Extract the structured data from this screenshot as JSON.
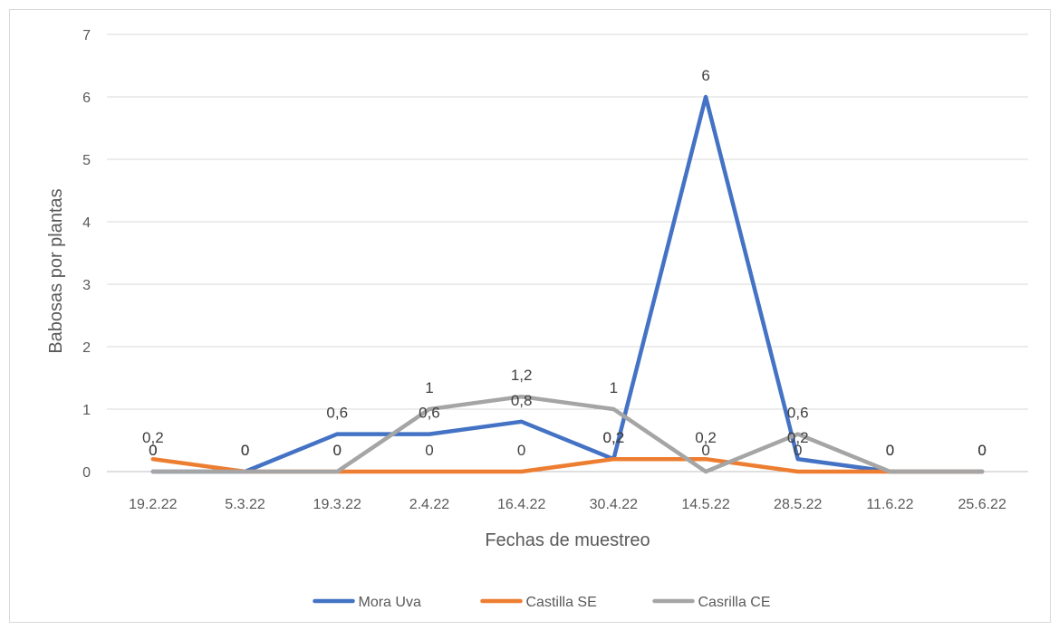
{
  "chart_data": {
    "type": "line",
    "title": "",
    "xlabel": "Fechas de muestreo",
    "ylabel": "Babosas por plantas",
    "categories": [
      "19.2.22",
      "5.3.22",
      "19.3.22",
      "2.4.22",
      "16.4.22",
      "30.4.22",
      "14.5.22",
      "28.5.22",
      "11.6.22",
      "25.6.22"
    ],
    "ylim": [
      0,
      7
    ],
    "yticks": [
      0,
      1,
      2,
      3,
      4,
      5,
      6,
      7
    ],
    "grid": true,
    "legend_position": "bottom",
    "series": [
      {
        "name": "Mora Uva",
        "color": "#4472C4",
        "values": [
          0,
          0,
          0.6,
          0.6,
          0.8,
          0.2,
          6,
          0.2,
          0,
          0
        ],
        "labels": [
          "0",
          "0",
          "0,6",
          "0,6",
          "0,8",
          "0,2",
          "6",
          "0,2",
          "0",
          "0"
        ]
      },
      {
        "name": "Castilla SE",
        "color": "#ED7D31",
        "values": [
          0.2,
          0,
          0,
          0,
          0,
          0.2,
          0.2,
          0,
          0,
          0
        ],
        "labels": [
          "0,2",
          "0",
          "0",
          "0",
          "0",
          "0,2",
          "0,2",
          "0",
          "0",
          "0"
        ]
      },
      {
        "name": "Casrilla CE",
        "color": "#A5A5A5",
        "values": [
          0,
          0,
          0,
          1,
          1.2,
          1,
          0,
          0.6,
          0,
          0
        ],
        "labels": [
          "0",
          "0",
          "0",
          "1",
          "1,2",
          "1",
          "0",
          "0,6",
          "0",
          "0"
        ]
      }
    ]
  }
}
